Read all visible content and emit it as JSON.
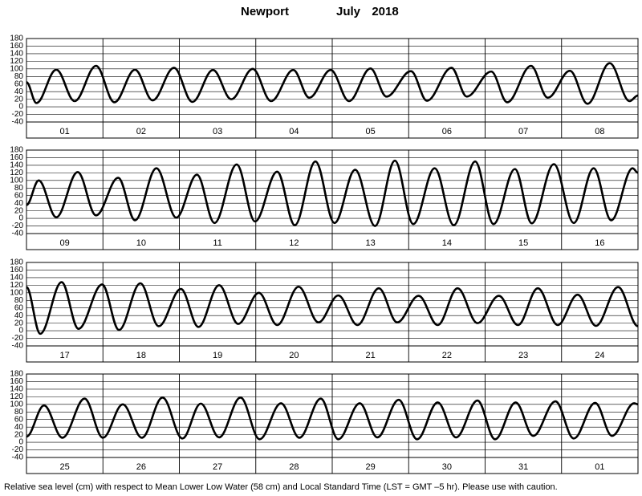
{
  "header": {
    "location": "Newport",
    "month": "July",
    "year": "2018"
  },
  "footnote": "Relative sea level (cm) with respect to Mean Lower Low Water (58 cm) and Local Standard Time (LST = GMT –5 hr). Please use with caution.",
  "chart_data": [
    {
      "type": "line",
      "categories": [
        "01",
        "02",
        "03",
        "04",
        "05",
        "06",
        "07",
        "08"
      ],
      "xlim": [
        0,
        8
      ],
      "ylim": [
        -40,
        180
      ],
      "yticks": [
        -40,
        -20,
        0,
        20,
        40,
        60,
        80,
        100,
        120,
        140,
        160,
        180
      ],
      "grid": true,
      "color": "#000000",
      "x": [
        0,
        0.13,
        0.39,
        0.63,
        0.91,
        1.15,
        1.42,
        1.65,
        1.93,
        2.17,
        2.44,
        2.68,
        2.96,
        3.2,
        3.49,
        3.7,
        3.98,
        4.22,
        4.5,
        4.71,
        5.03,
        5.24,
        5.56,
        5.76,
        6.08,
        6.29,
        6.6,
        6.82,
        7.11,
        7.34,
        7.63,
        7.89,
        8
      ],
      "values": [
        65,
        10,
        98,
        15,
        108,
        12,
        98,
        17,
        103,
        13,
        97,
        20,
        100,
        15,
        97,
        24,
        97,
        15,
        101,
        27,
        94,
        16,
        103,
        27,
        93,
        12,
        108,
        24,
        95,
        8,
        115,
        15,
        30
      ]
    },
    {
      "type": "line",
      "categories": [
        "09",
        "10",
        "11",
        "12",
        "13",
        "14",
        "15",
        "16"
      ],
      "xlim": [
        0,
        8
      ],
      "ylim": [
        -40,
        180
      ],
      "yticks": [
        -40,
        -20,
        0,
        20,
        40,
        60,
        80,
        100,
        120,
        140,
        160,
        180
      ],
      "grid": true,
      "color": "#000000",
      "x": [
        0,
        0.16,
        0.39,
        0.67,
        0.91,
        1.2,
        1.42,
        1.7,
        1.96,
        2.23,
        2.46,
        2.75,
        2.99,
        3.28,
        3.51,
        3.78,
        4.03,
        4.3,
        4.56,
        4.82,
        5.06,
        5.34,
        5.59,
        5.87,
        6.11,
        6.39,
        6.61,
        6.9,
        7.16,
        7.42,
        7.65,
        7.93,
        8
      ],
      "values": [
        35,
        100,
        3,
        122,
        8,
        107,
        -5,
        132,
        2,
        115,
        -12,
        142,
        -8,
        123,
        -18,
        150,
        -12,
        128,
        -20,
        152,
        -15,
        132,
        -18,
        150,
        -15,
        130,
        -13,
        143,
        -12,
        132,
        -5,
        132,
        120
      ]
    },
    {
      "type": "line",
      "categories": [
        "17",
        "18",
        "19",
        "20",
        "21",
        "22",
        "23",
        "24"
      ],
      "xlim": [
        0,
        8
      ],
      "ylim": [
        -40,
        180
      ],
      "yticks": [
        -40,
        -20,
        0,
        20,
        40,
        60,
        80,
        100,
        120,
        140,
        160,
        180
      ],
      "grid": true,
      "color": "#000000",
      "x": [
        0,
        0.18,
        0.46,
        0.68,
        0.99,
        1.21,
        1.49,
        1.73,
        2.02,
        2.25,
        2.52,
        2.77,
        3.04,
        3.28,
        3.56,
        3.82,
        4.08,
        4.33,
        4.61,
        4.85,
        5.13,
        5.38,
        5.64,
        5.9,
        6.18,
        6.43,
        6.69,
        6.95,
        7.21,
        7.45,
        7.74,
        8
      ],
      "values": [
        115,
        -8,
        128,
        5,
        122,
        2,
        125,
        12,
        110,
        10,
        120,
        18,
        100,
        15,
        116,
        22,
        93,
        15,
        112,
        22,
        92,
        15,
        112,
        20,
        92,
        15,
        112,
        15,
        95,
        13,
        115,
        12
      ]
    },
    {
      "type": "line",
      "categories": [
        "25",
        "26",
        "27",
        "28",
        "29",
        "30",
        "31",
        "01"
      ],
      "xlim": [
        0,
        8
      ],
      "ylim": [
        -40,
        180
      ],
      "yticks": [
        -40,
        -20,
        0,
        20,
        40,
        60,
        80,
        100,
        120,
        140,
        160,
        180
      ],
      "grid": true,
      "color": "#000000",
      "x": [
        0,
        0.23,
        0.47,
        0.76,
        1.0,
        1.26,
        1.51,
        1.78,
        2.04,
        2.28,
        2.52,
        2.8,
        3.05,
        3.33,
        3.57,
        3.85,
        4.08,
        4.36,
        4.59,
        4.87,
        5.11,
        5.38,
        5.62,
        5.9,
        6.13,
        6.4,
        6.63,
        6.92,
        7.16,
        7.44,
        7.66,
        7.95,
        8
      ],
      "values": [
        15,
        97,
        12,
        115,
        12,
        100,
        12,
        118,
        10,
        102,
        13,
        118,
        8,
        103,
        12,
        115,
        8,
        103,
        13,
        112,
        8,
        105,
        13,
        110,
        8,
        105,
        17,
        108,
        10,
        104,
        17,
        103,
        100
      ]
    }
  ]
}
